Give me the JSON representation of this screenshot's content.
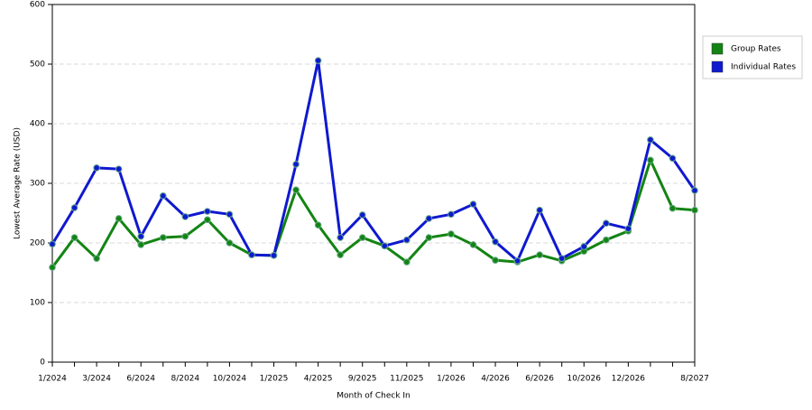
{
  "chart_data": {
    "type": "line",
    "x_label": "Month of Check In",
    "y_label": "Lowest Average Rate (USD)",
    "categories": [
      "1/2024",
      null,
      "3/2024",
      null,
      "6/2024",
      null,
      "8/2024",
      null,
      "10/2024",
      null,
      "1/2025",
      null,
      "4/2025",
      null,
      "9/2025",
      null,
      "11/2025",
      null,
      "1/2026",
      null,
      "4/2026",
      null,
      "6/2026",
      null,
      "10/2026",
      null,
      "12/2026",
      null,
      null,
      "8/2027"
    ],
    "series": [
      {
        "name": "Group Rates",
        "color": "#138413",
        "values": [
          159,
          209,
          174,
          241,
          197,
          209,
          211,
          239,
          200,
          180,
          179,
          289,
          230,
          180,
          209,
          195,
          168,
          209,
          215,
          197,
          171,
          168,
          180,
          170,
          186,
          205,
          220,
          339,
          258,
          255
        ]
      },
      {
        "name": "Individual Rates",
        "color": "#0f19cf",
        "values": [
          198,
          259,
          326,
          324,
          211,
          279,
          244,
          253,
          248,
          180,
          179,
          332,
          506,
          209,
          247,
          195,
          205,
          241,
          248,
          265,
          202,
          170,
          255,
          174,
          194,
          233,
          224,
          373,
          342,
          288
        ]
      }
    ],
    "ylim": [
      0,
      600
    ],
    "yticks": [
      0,
      100,
      200,
      300,
      400,
      500,
      600
    ],
    "grid": true,
    "legend": "right"
  }
}
